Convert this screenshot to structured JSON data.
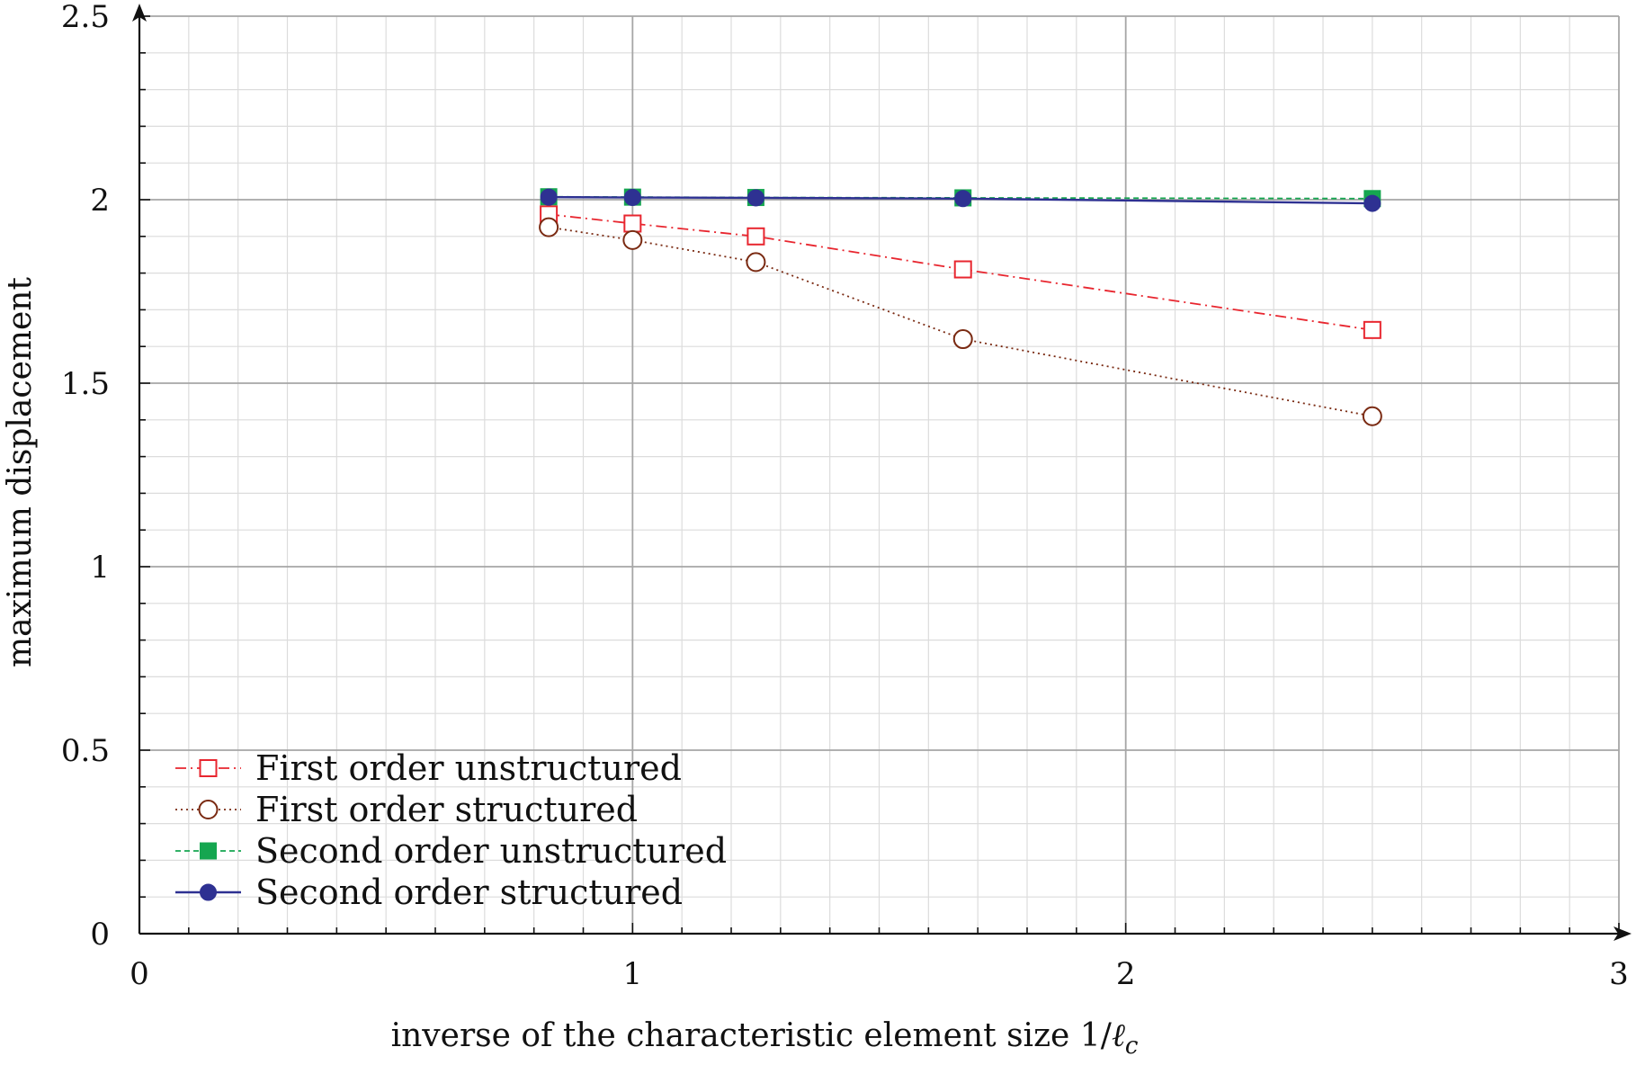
{
  "chart_data": {
    "type": "line",
    "title": "",
    "xlabel": "inverse of the characteristic element size 1/ℓc",
    "xlabel_main": "inverse of the characteristic element size 1/",
    "xlabel_ell": "ℓ",
    "xlabel_sub": "c",
    "ylabel": "maximum displacement",
    "xlim": [
      0,
      3
    ],
    "ylim": [
      0,
      2.5
    ],
    "x_ticks": [
      0,
      1,
      2,
      3
    ],
    "x_tick_labels": [
      "0",
      "1",
      "2",
      "3"
    ],
    "y_ticks": [
      0,
      0.5,
      1,
      1.5,
      2,
      2.5
    ],
    "y_tick_labels": [
      "0",
      "0.5",
      "1",
      "1.5",
      "2",
      "2.5"
    ],
    "x_minor_step": 0.1,
    "y_minor_step": 0.1,
    "grid": true,
    "legend_position": "bottom-left",
    "series": [
      {
        "name": "First order unstructured",
        "color": "#e8262f",
        "line_style": "dash-dot",
        "marker": "open-square",
        "x": [
          0.83,
          1.0,
          1.25,
          1.67,
          2.5
        ],
        "y": [
          1.96,
          1.935,
          1.9,
          1.81,
          1.645
        ]
      },
      {
        "name": "First order structured",
        "color": "#7a2a12",
        "line_style": "dotted",
        "marker": "open-circle",
        "x": [
          0.83,
          1.0,
          1.25,
          1.67,
          2.5
        ],
        "y": [
          1.925,
          1.89,
          1.83,
          1.62,
          1.41
        ]
      },
      {
        "name": "Second order unstructured",
        "color": "#15a650",
        "line_style": "dashed",
        "marker": "filled-square",
        "x": [
          0.83,
          1.0,
          1.25,
          1.67,
          2.5
        ],
        "y": [
          2.008,
          2.007,
          2.006,
          2.005,
          2.003
        ]
      },
      {
        "name": "Second order structured",
        "color": "#2e3192",
        "line_style": "solid",
        "marker": "filled-circle",
        "x": [
          0.83,
          1.0,
          1.25,
          1.67,
          2.5
        ],
        "y": [
          2.007,
          2.006,
          2.005,
          2.003,
          1.99
        ]
      }
    ]
  }
}
